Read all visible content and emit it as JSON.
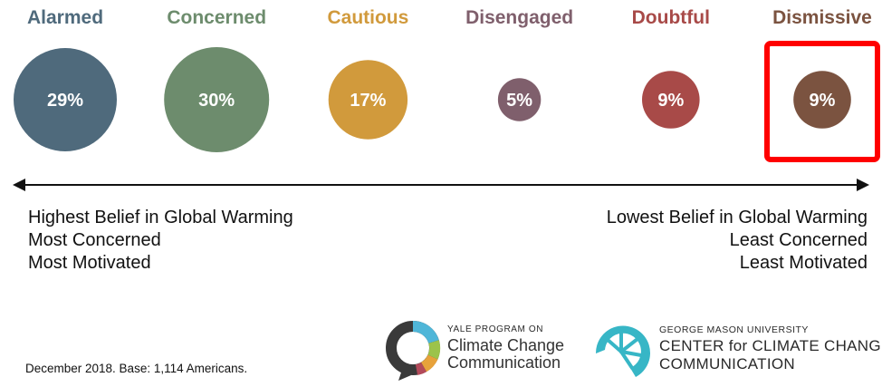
{
  "chart_data": {
    "type": "bubble",
    "categories": [
      "Alarmed",
      "Concerned",
      "Cautious",
      "Disengaged",
      "Doubtful",
      "Dismissive"
    ],
    "values": [
      29,
      30,
      17,
      5,
      9,
      9
    ],
    "value_labels": [
      "29%",
      "30%",
      "17%",
      "5%",
      "9%",
      "9%"
    ],
    "colors": [
      "#4f6a7c",
      "#6d8c6d",
      "#d19a3c",
      "#7f5f6c",
      "#a84a48",
      "#7b5340"
    ],
    "highlighted": "Dismissive",
    "highlight_color": "#ff0000",
    "axis_left_text": [
      "Highest Belief in Global Warming",
      "Most Concerned",
      "Most Motivated"
    ],
    "axis_right_text": [
      "Lowest Belief in Global Warming",
      "Least Concerned",
      "Least Motivated"
    ],
    "footnote": "December 2018. Base: 1,114 Americans."
  },
  "logos": {
    "yale": {
      "small": "YALE PROGRAM ON",
      "line1": "Climate Change",
      "line2": "Communication"
    },
    "gmu": {
      "small": "GEORGE MASON UNIVERSITY",
      "line1": "CENTER for CLIMATE CHANGE",
      "line2": "COMMUNICATION"
    }
  }
}
